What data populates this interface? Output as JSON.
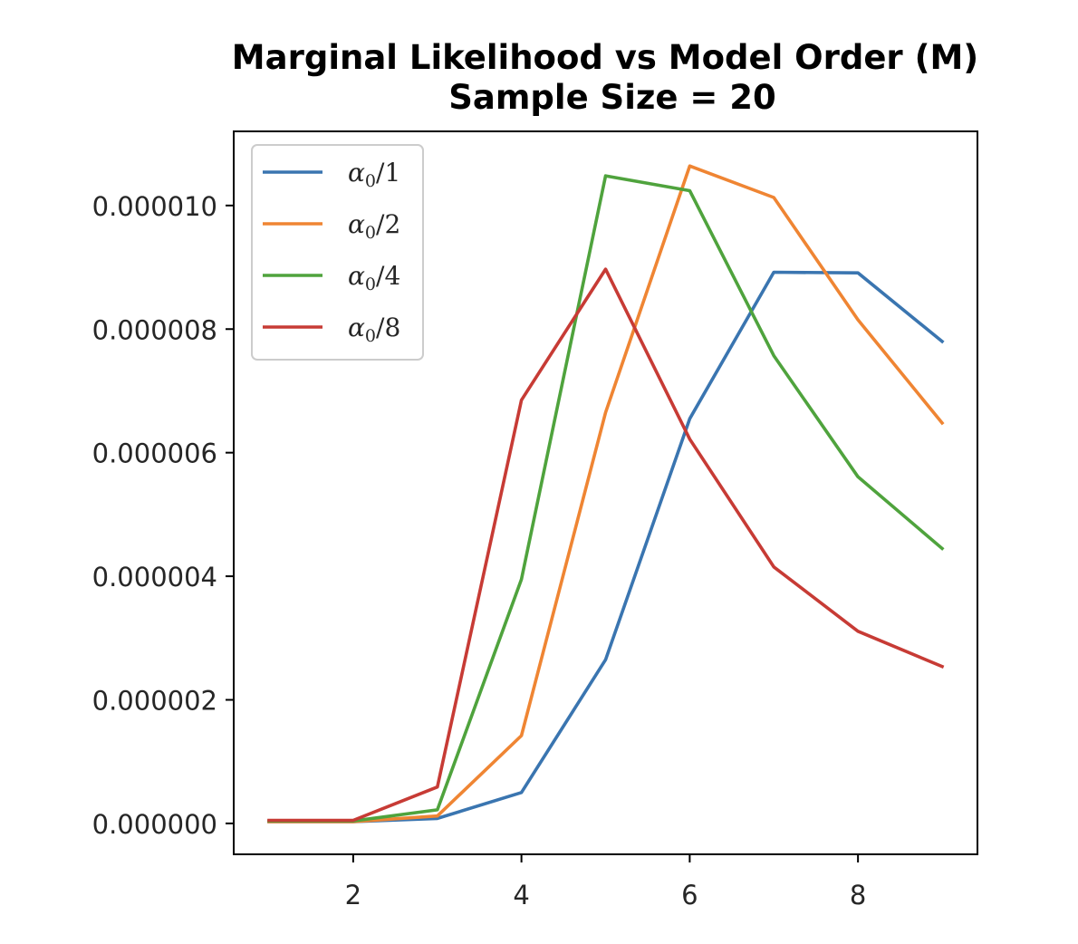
{
  "chart_data": {
    "type": "line",
    "title": "Marginal Likelihood vs Model Order (M)",
    "subtitle": "Sample Size = 20",
    "xlabel": "",
    "ylabel": "",
    "x": [
      1,
      2,
      3,
      4,
      5,
      6,
      7,
      8,
      9
    ],
    "xlim": [
      0.58,
      9.42
    ],
    "ylim": [
      -5e-07,
      1.12e-05
    ],
    "xticks": [
      2,
      4,
      6,
      8
    ],
    "yticks": [
      0,
      2e-06,
      4e-06,
      6e-06,
      8e-06,
      1e-05
    ],
    "ytick_labels": [
      "0.000000",
      "0.000002",
      "0.000004",
      "0.000006",
      "0.000008",
      "0.000010"
    ],
    "grid": false,
    "legend_position": "upper-left",
    "series": [
      {
        "name": "α0/1",
        "label_symbol": "α",
        "label_subscript": "0",
        "label_suffix": "/1",
        "color": "#3a75b0",
        "values": [
          3e-08,
          3e-08,
          8e-08,
          5e-07,
          2.65e-06,
          6.55e-06,
          8.92e-06,
          8.91e-06,
          7.8e-06
        ]
      },
      {
        "name": "α0/2",
        "label_symbol": "α",
        "label_subscript": "0",
        "label_suffix": "/2",
        "color": "#ef8533",
        "values": [
          3e-08,
          3e-08,
          1.2e-07,
          1.42e-06,
          6.65e-06,
          1.064e-05,
          1.013e-05,
          8.15e-06,
          6.48e-06
        ]
      },
      {
        "name": "α0/4",
        "label_symbol": "α",
        "label_subscript": "0",
        "label_suffix": "/4",
        "color": "#4fa33d",
        "values": [
          4e-08,
          4e-08,
          2.2e-07,
          3.95e-06,
          1.048e-05,
          1.024e-05,
          7.57e-06,
          5.61e-06,
          4.45e-06
        ]
      },
      {
        "name": "α0/8",
        "label_symbol": "α",
        "label_subscript": "0",
        "label_suffix": "/8",
        "color": "#c73b35",
        "values": [
          5e-08,
          5e-08,
          5.9e-07,
          6.85e-06,
          8.97e-06,
          6.22e-06,
          4.15e-06,
          3.11e-06,
          2.54e-06
        ]
      }
    ]
  }
}
